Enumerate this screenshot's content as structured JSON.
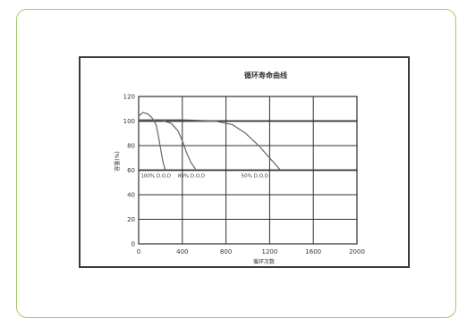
{
  "colors": {
    "card_border": "#a6c96a",
    "frame": "#3a3a3a",
    "grid": "#2f2f2f",
    "curve": "#666666",
    "text": "#333333"
  },
  "chart_data": {
    "type": "line",
    "title": "循环寿命曲线",
    "xlabel": "循环次数",
    "ylabel": "容量(%)",
    "xlim": [
      0,
      2000
    ],
    "ylim": [
      0,
      120
    ],
    "xticks": [
      "0",
      "400",
      "800",
      "1200",
      "1600",
      "2000"
    ],
    "yticks": [
      "0",
      "20",
      "40",
      "60",
      "80",
      "100",
      "120"
    ],
    "grid": true,
    "series": [
      {
        "name": "100% D.O.D",
        "x": [
          0,
          40,
          80,
          120,
          160,
          180,
          200,
          220,
          240,
          260
        ],
        "y": [
          104,
          107,
          106,
          103,
          97,
          88,
          78,
          68,
          61,
          60
        ]
      },
      {
        "name": "80% D.O.D",
        "x": [
          0,
          100,
          200,
          300,
          360,
          400,
          440,
          480,
          520
        ],
        "y": [
          101,
          101,
          101,
          98,
          92,
          84,
          74,
          66,
          61
        ]
      },
      {
        "name": "50% D.O.D",
        "x": [
          0,
          400,
          700,
          860,
          980,
          1100,
          1200,
          1300
        ],
        "y": [
          101,
          101,
          100,
          97,
          90,
          80,
          70,
          60
        ]
      }
    ],
    "reference_lines": [
      {
        "y": 100
      },
      {
        "y": 60
      }
    ]
  }
}
